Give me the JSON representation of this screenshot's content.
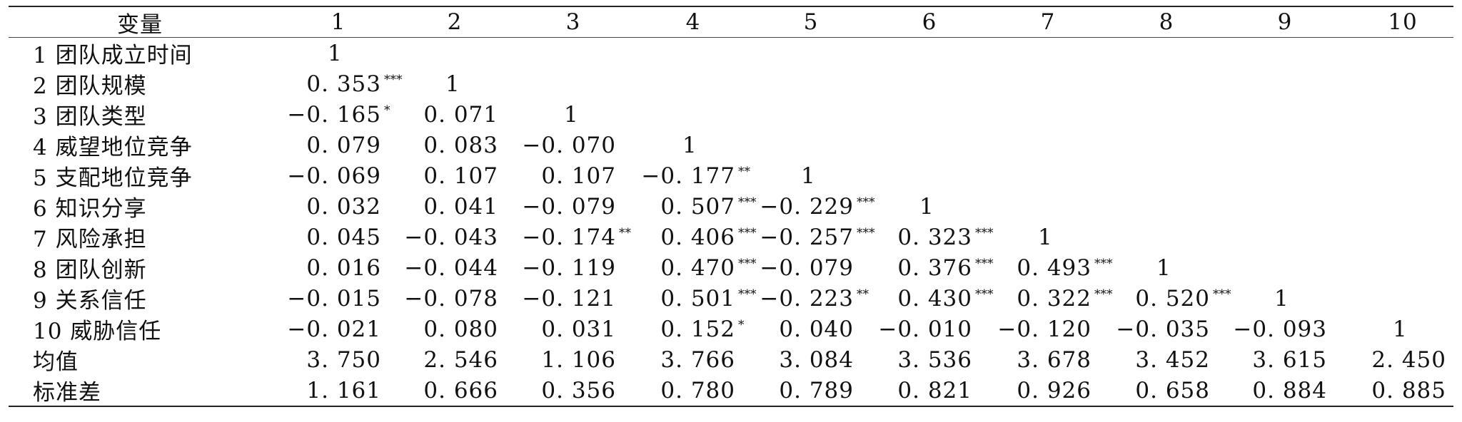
{
  "table": {
    "header": [
      "变量",
      "1",
      "2",
      "3",
      "4",
      "5",
      "6",
      "7",
      "8",
      "9",
      "10"
    ],
    "rows": [
      {
        "label": "1 团队成立时间",
        "cells": [
          {
            "v": "1"
          }
        ]
      },
      {
        "label": "2 团队规模",
        "cells": [
          {
            "v": "0. 353",
            "s": "***"
          },
          {
            "v": "1"
          }
        ]
      },
      {
        "label": "3 团队类型",
        "cells": [
          {
            "v": "−0. 165",
            "s": "*"
          },
          {
            "v": "0. 071"
          },
          {
            "v": "1"
          }
        ]
      },
      {
        "label": "4 威望地位竞争",
        "cells": [
          {
            "v": "0. 079"
          },
          {
            "v": "0. 083"
          },
          {
            "v": "−0. 070"
          },
          {
            "v": "1"
          }
        ]
      },
      {
        "label": "5 支配地位竞争",
        "cells": [
          {
            "v": "−0. 069"
          },
          {
            "v": "0. 107"
          },
          {
            "v": "0. 107"
          },
          {
            "v": "−0. 177",
            "s": "**"
          },
          {
            "v": "1"
          }
        ]
      },
      {
        "label": "6 知识分享",
        "cells": [
          {
            "v": "0. 032"
          },
          {
            "v": "0. 041"
          },
          {
            "v": "−0. 079"
          },
          {
            "v": "0. 507",
            "s": "***"
          },
          {
            "v": "−0. 229",
            "s": "***"
          },
          {
            "v": "1"
          }
        ]
      },
      {
        "label": "7 风险承担",
        "cells": [
          {
            "v": "0. 045"
          },
          {
            "v": "−0. 043"
          },
          {
            "v": "−0. 174",
            "s": "**"
          },
          {
            "v": "0. 406",
            "s": "***"
          },
          {
            "v": "−0. 257",
            "s": "***"
          },
          {
            "v": "0. 323",
            "s": "***"
          },
          {
            "v": "1"
          }
        ]
      },
      {
        "label": "8 团队创新",
        "cells": [
          {
            "v": "0. 016"
          },
          {
            "v": "−0. 044"
          },
          {
            "v": "−0. 119"
          },
          {
            "v": "0. 470",
            "s": "***"
          },
          {
            "v": "−0. 079"
          },
          {
            "v": "0. 376",
            "s": "***"
          },
          {
            "v": "0. 493",
            "s": "***"
          },
          {
            "v": "1"
          }
        ]
      },
      {
        "label": "9 关系信任",
        "cells": [
          {
            "v": "−0. 015"
          },
          {
            "v": "−0. 078"
          },
          {
            "v": "−0. 121"
          },
          {
            "v": "0. 501",
            "s": "***"
          },
          {
            "v": "−0. 223",
            "s": "**"
          },
          {
            "v": "0. 430",
            "s": "***"
          },
          {
            "v": "0. 322",
            "s": "***"
          },
          {
            "v": "0. 520",
            "s": "***"
          },
          {
            "v": "1"
          }
        ]
      },
      {
        "label": "10 威胁信任",
        "cells": [
          {
            "v": "−0. 021"
          },
          {
            "v": "0. 080"
          },
          {
            "v": "0. 031"
          },
          {
            "v": "0. 152",
            "s": "*"
          },
          {
            "v": "0. 040"
          },
          {
            "v": "−0. 010"
          },
          {
            "v": "−0. 120"
          },
          {
            "v": "−0. 035"
          },
          {
            "v": "−0. 093"
          },
          {
            "v": "1"
          }
        ]
      },
      {
        "label": "均值",
        "cells": [
          {
            "v": "3. 750"
          },
          {
            "v": "2. 546"
          },
          {
            "v": "1. 106"
          },
          {
            "v": "3. 766"
          },
          {
            "v": "3. 084"
          },
          {
            "v": "3. 536"
          },
          {
            "v": "3. 678"
          },
          {
            "v": "3. 452"
          },
          {
            "v": "3. 615"
          },
          {
            "v": "2. 450"
          }
        ]
      },
      {
        "label": "标准差",
        "cells": [
          {
            "v": "1. 161"
          },
          {
            "v": "0. 666"
          },
          {
            "v": "0. 356"
          },
          {
            "v": "0. 780"
          },
          {
            "v": "0. 789"
          },
          {
            "v": "0. 821"
          },
          {
            "v": "0. 926"
          },
          {
            "v": "0. 658"
          },
          {
            "v": "0. 884"
          },
          {
            "v": "0. 885"
          }
        ]
      }
    ]
  }
}
